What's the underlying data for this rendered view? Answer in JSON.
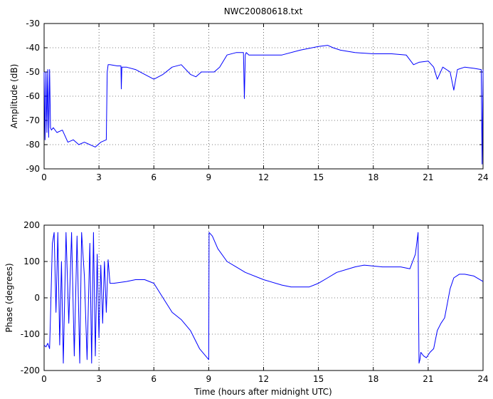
{
  "chart_data": [
    {
      "type": "line",
      "title": "NWC20080618.txt",
      "xlabel": "",
      "ylabel": "Amplitude (dB)",
      "xlim": [
        0,
        24
      ],
      "ylim": [
        -90,
        -30
      ],
      "xticks": [
        0,
        3,
        6,
        9,
        12,
        15,
        18,
        21,
        24
      ],
      "yticks": [
        -30,
        -40,
        -50,
        -60,
        -70,
        -80,
        -90
      ],
      "grid": true,
      "color": "#0000ff",
      "series": [
        {
          "x": [
            0,
            0.05,
            0.1,
            0.15,
            0.2,
            0.25,
            0.3,
            0.35,
            0.4,
            0.5,
            0.7,
            1.0,
            1.3,
            1.6,
            1.9,
            2.2,
            2.5,
            2.8,
            3.1,
            3.4,
            3.45,
            3.5,
            3.6,
            4.0,
            4.2,
            4.22,
            4.25,
            4.5,
            5.0,
            5.5,
            6.0,
            6.5,
            7.0,
            7.5,
            8.0,
            8.3,
            8.6,
            9.0,
            9.3,
            9.6,
            10.0,
            10.5,
            10.9,
            10.95,
            11.0,
            11.05,
            11.2,
            12.0,
            13.0,
            14.0,
            15.0,
            15.5,
            15.8,
            16.2,
            17.0,
            18.0,
            19.0,
            19.8,
            20.2,
            20.5,
            21.0,
            21.3,
            21.5,
            21.8,
            22.2,
            22.4,
            22.6,
            23.0,
            23.5,
            23.9,
            23.95,
            24.0
          ],
          "y": [
            -50,
            -78,
            -50,
            -75,
            -49,
            -77,
            -49,
            -73,
            -74,
            -73,
            -75,
            -74,
            -79,
            -78,
            -80,
            -79,
            -80,
            -81,
            -79,
            -78,
            -50,
            -47,
            -47,
            -47.5,
            -47.5,
            -57,
            -48,
            -48,
            -49,
            -51,
            -53,
            -51,
            -48,
            -47,
            -51,
            -52,
            -50,
            -50,
            -50,
            -48,
            -43,
            -42,
            -42,
            -61,
            -43,
            -42,
            -43,
            -43,
            -43,
            -41,
            -39.5,
            -39,
            -40,
            -41,
            -42,
            -42.5,
            -42.5,
            -43,
            -47,
            -46,
            -45.5,
            -48,
            -53,
            -48,
            -50,
            -57.5,
            -49,
            -48,
            -48.5,
            -49,
            -88,
            -49
          ]
        }
      ]
    },
    {
      "type": "line",
      "title": "",
      "xlabel": "Time (hours after midnight UTC)",
      "ylabel": "Phase (degrees)",
      "xlim": [
        0,
        24
      ],
      "ylim": [
        -200,
        200
      ],
      "xticks": [
        0,
        3,
        6,
        9,
        12,
        15,
        18,
        21,
        24
      ],
      "yticks": [
        200,
        100,
        0,
        -100,
        -200
      ],
      "grid": true,
      "color": "#0000ff",
      "series": [
        {
          "x": [
            0,
            0.1,
            0.2,
            0.3,
            0.35,
            0.45,
            0.55,
            0.65,
            0.75,
            0.85,
            0.95,
            1.05,
            1.2,
            1.35,
            1.5,
            1.65,
            1.8,
            1.95,
            2.05,
            2.2,
            2.35,
            2.5,
            2.6,
            2.7,
            2.8,
            2.9,
            3.0,
            3.1,
            3.2,
            3.3,
            3.4,
            3.5,
            3.6,
            3.8,
            4.5,
            5.0,
            5.5,
            6.0,
            6.5,
            7.0,
            7.5,
            8.0,
            8.5,
            9.0,
            9.02,
            9.2,
            9.5,
            10.0,
            10.5,
            11.0,
            12.0,
            13.0,
            13.5,
            14.5,
            15.0,
            15.5,
            16.0,
            17.0,
            17.5,
            18.5,
            19.5,
            20.0,
            20.3,
            20.45,
            20.47,
            20.5,
            20.55,
            20.6,
            20.75,
            20.9,
            21.1,
            21.3,
            21.5,
            21.7,
            21.9,
            22.2,
            22.4,
            22.7,
            23.0,
            23.5,
            24.0
          ],
          "y": [
            -130,
            -135,
            -125,
            -140,
            -50,
            150,
            180,
            -40,
            180,
            -130,
            100,
            -180,
            180,
            -70,
            180,
            -160,
            170,
            -180,
            180,
            60,
            -170,
            150,
            -180,
            180,
            -160,
            120,
            -110,
            90,
            -70,
            100,
            -40,
            105,
            40,
            40,
            45,
            50,
            50,
            40,
            0,
            -40,
            -60,
            -90,
            -140,
            -170,
            180,
            170,
            135,
            100,
            85,
            70,
            50,
            35,
            30,
            30,
            40,
            55,
            70,
            85,
            90,
            85,
            85,
            80,
            120,
            180,
            20,
            -180,
            -170,
            -150,
            -160,
            -165,
            -150,
            -140,
            -90,
            -70,
            -55,
            25,
            55,
            65,
            65,
            60,
            45
          ]
        }
      ]
    }
  ]
}
